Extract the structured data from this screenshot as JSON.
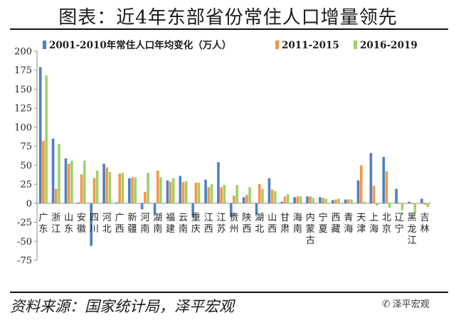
{
  "title": "图表：近4年东部省份常住人口增量领先",
  "source_text": "资料来源：国家统计局，泽平宏观",
  "brand": {
    "icon": "wechat-icon",
    "label": "泽平宏观"
  },
  "colors": {
    "s1": "#4F81BD",
    "s2": "#F79646",
    "s3": "#9BD36B"
  },
  "chart_data": {
    "type": "bar",
    "title": "",
    "xlabel": "",
    "ylabel": "",
    "ylim": [
      -75,
      200
    ],
    "yticks": [
      200,
      175,
      150,
      125,
      100,
      75,
      50,
      25,
      0,
      -25,
      -50,
      -75
    ],
    "grid": false,
    "legend": "top",
    "categories": [
      "广东",
      "浙江",
      "山东",
      "安徽",
      "四川",
      "河北",
      "广西",
      "新疆",
      "河南",
      "湖南",
      "福建",
      "云南",
      "重庆",
      "江西",
      "江苏",
      "贵州",
      "陕西",
      "湖北",
      "山西",
      "甘肃",
      "海南",
      "内蒙古",
      "宁夏",
      "西藏",
      "青海",
      "天津",
      "上海",
      "北京",
      "辽宁",
      "黑龙江",
      "吉林"
    ],
    "series": [
      {
        "name": "2001-2010年常住人口年均变化（万人）",
        "values": [
          179,
          85,
          59,
          1,
          -56,
          52,
          1,
          33,
          -8,
          -15,
          30,
          36,
          -18,
          31,
          54,
          -18,
          8,
          -15,
          33,
          2,
          8,
          9,
          8,
          4,
          5,
          30,
          66,
          61,
          19,
          2,
          6
        ]
      },
      {
        "name": "2011-2015",
        "values": [
          82,
          19,
          52,
          38,
          33,
          47,
          39,
          34,
          15,
          43,
          28,
          28,
          27,
          21,
          21,
          10,
          11,
          25,
          18,
          9,
          9,
          9,
          7,
          5,
          5,
          50,
          23,
          42,
          1,
          -1,
          -2
        ]
      },
      {
        "name": "2016-2019",
        "values": [
          168,
          78,
          56,
          56,
          43,
          41,
          40,
          34,
          40,
          34,
          33,
          29,
          27,
          25,
          24,
          24,
          21,
          19,
          16,
          12,
          9,
          7,
          6,
          6,
          5,
          2,
          -3,
          -6,
          -9,
          -13,
          -5
        ]
      }
    ]
  }
}
